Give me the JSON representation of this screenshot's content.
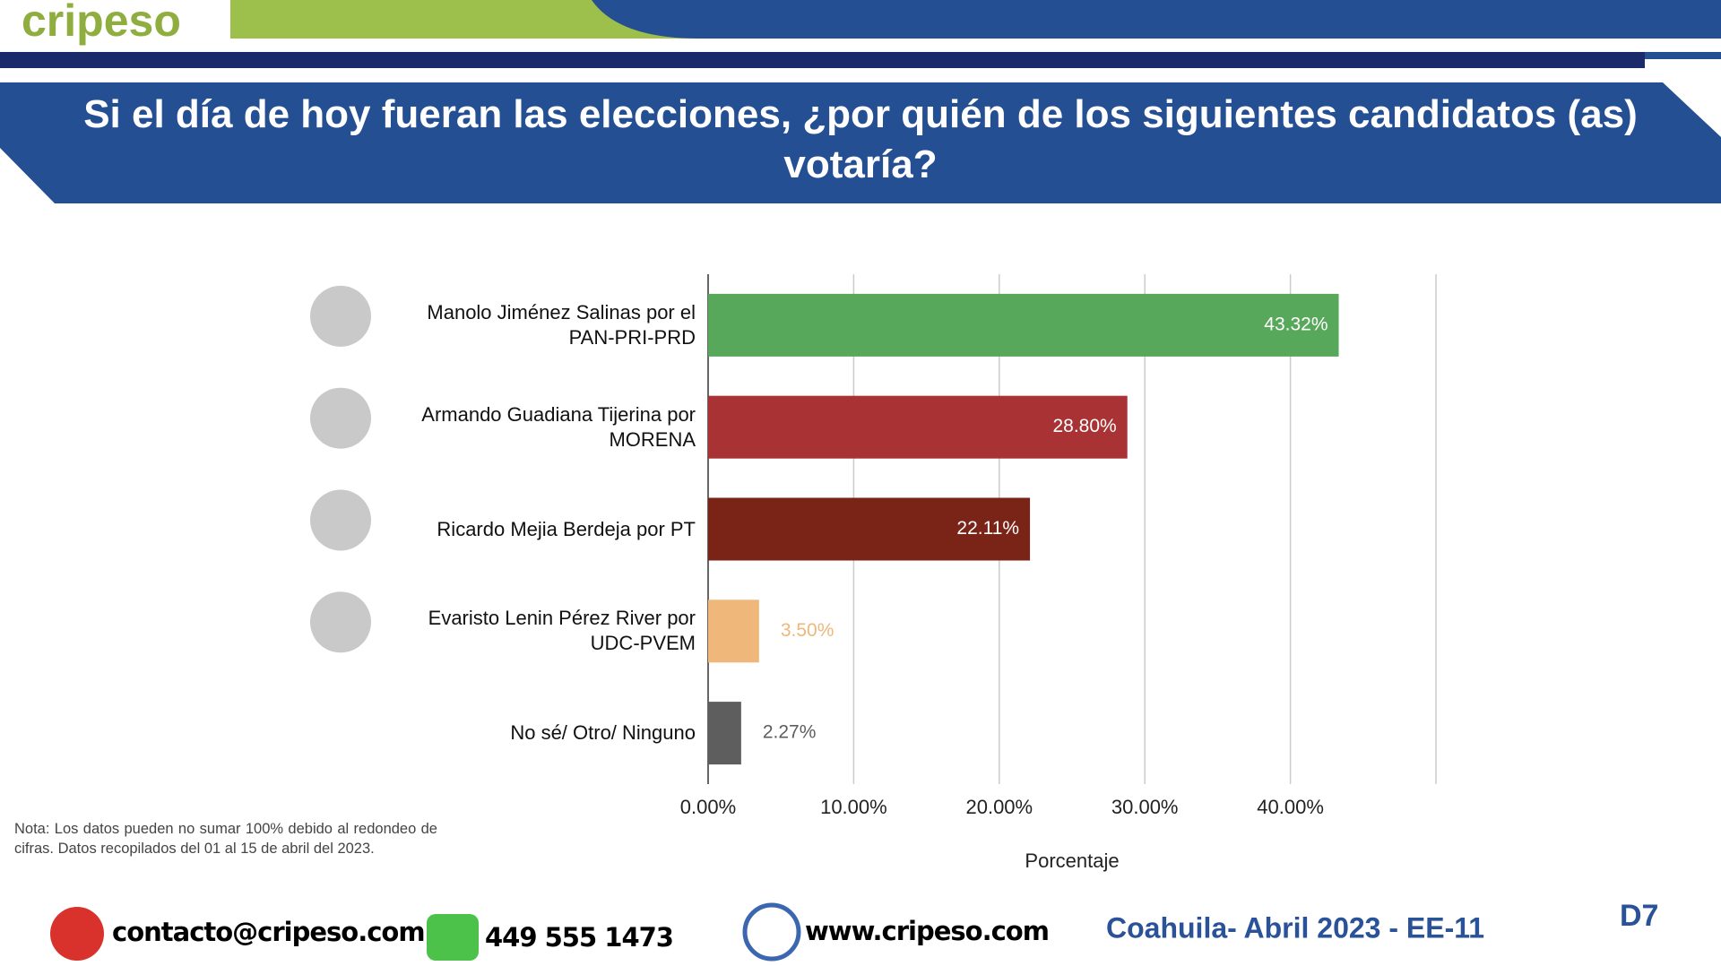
{
  "header": {
    "logo": "cripeso"
  },
  "chart_data": {
    "type": "bar",
    "orientation": "horizontal",
    "title": "Si el día de hoy fueran las elecciones, ¿por quién de los siguientes candidatos (as) votaría?",
    "categories": [
      "Manolo Jiménez Salinas por el PAN-PRI-PRD",
      "Armando Guadiana Tijerina por MORENA",
      "Ricardo Mejia Berdeja por PT",
      "Evaristo Lenin Pérez River por UDC-PVEM",
      "No sé/ Otro/ Ninguno"
    ],
    "values": [
      43.32,
      28.8,
      22.11,
      3.5,
      2.27
    ],
    "value_labels": [
      "43.32%",
      "28.80%",
      "22.11%",
      "3.50%",
      "2.27%"
    ],
    "colors": [
      "#57a85b",
      "#a83234",
      "#7a2418",
      "#efb77a",
      "#5e5e5e"
    ],
    "xlim": [
      0,
      50
    ],
    "xticks": [
      {
        "value": 0,
        "label": "0.00%"
      },
      {
        "value": 10,
        "label": "10.00%"
      },
      {
        "value": 20,
        "label": "20.00%"
      },
      {
        "value": 30,
        "label": "30.00%"
      },
      {
        "value": 40,
        "label": "40.00%"
      }
    ],
    "xlabel": "Porcentaje",
    "grid": true
  },
  "note": "Nota: Los datos pueden no sumar 100% debido al redondeo de cifras. Datos recopilados del 01 al 15 de abril del 2023.",
  "footer": {
    "email": "contacto@cripeso.com",
    "phone": "449 555 1473",
    "website": "www.cripeso.com",
    "survey": "Coahuila- Abril 2023 - EE-11",
    "page": "D7"
  }
}
